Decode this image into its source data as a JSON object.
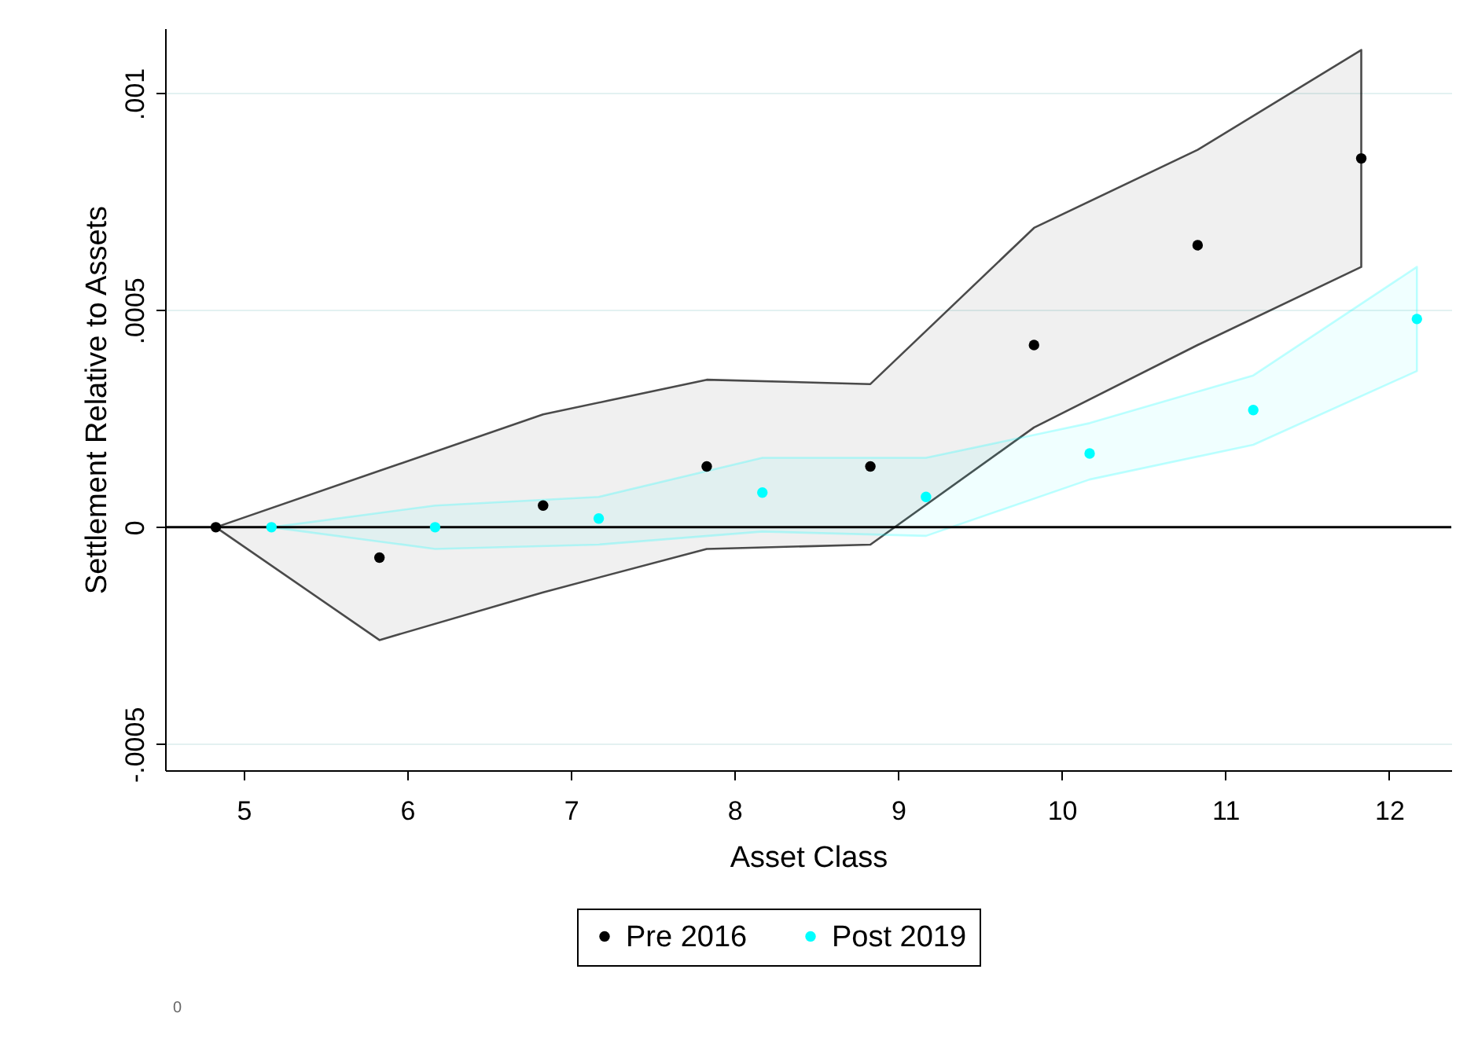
{
  "chart_data": {
    "type": "scatter",
    "xlabel": "Asset Class",
    "ylabel": "Settlement Relative to Assets",
    "xlim": [
      4.52,
      12.38
    ],
    "xticks": [
      5,
      6,
      7,
      8,
      9,
      10,
      11,
      12
    ],
    "ylim": [
      -0.00056,
      0.00115
    ],
    "yticks": [
      {
        "value": -0.0005,
        "label": "-.0005"
      },
      0,
      {
        "value": 0.0005,
        "label": ".0005"
      },
      {
        "value": 0.001,
        "label": ".001"
      }
    ],
    "grid": "y",
    "legend": "bottom",
    "marker": "circle",
    "ref_lines": [
      {
        "axis": "y",
        "value": 0,
        "color": "#000000"
      }
    ],
    "annotations": [
      "0"
    ],
    "series": [
      {
        "name": "Pre 2016",
        "color": "#000000",
        "x": [
          4.83,
          5.83,
          6.83,
          7.83,
          8.83,
          9.83,
          10.83,
          11.83
        ],
        "values": [
          0,
          -7e-05,
          5e-05,
          0.00014,
          0.00014,
          0.00042,
          0.00065,
          0.00085
        ],
        "lower": [
          0,
          -0.00026,
          -0.00015,
          -5e-05,
          -4e-05,
          0.00023,
          0.00042,
          0.0006
        ],
        "upper": [
          0,
          0.00013,
          0.00026,
          0.00034,
          0.00033,
          0.00069,
          0.00087,
          0.0011
        ]
      },
      {
        "name": "Post 2019",
        "color": "#00ffff",
        "x": [
          5.17,
          6.17,
          7.17,
          8.17,
          9.17,
          10.17,
          11.17,
          12.17
        ],
        "values": [
          0,
          0,
          2e-05,
          8e-05,
          7e-05,
          0.00017,
          0.00027,
          0.00048
        ],
        "lower": [
          0,
          -5e-05,
          -4e-05,
          -1e-05,
          -2e-05,
          0.00011,
          0.00019,
          0.00036
        ],
        "upper": [
          0,
          5e-05,
          7e-05,
          0.00016,
          0.00016,
          0.00024,
          0.00035,
          0.0006
        ]
      }
    ]
  }
}
